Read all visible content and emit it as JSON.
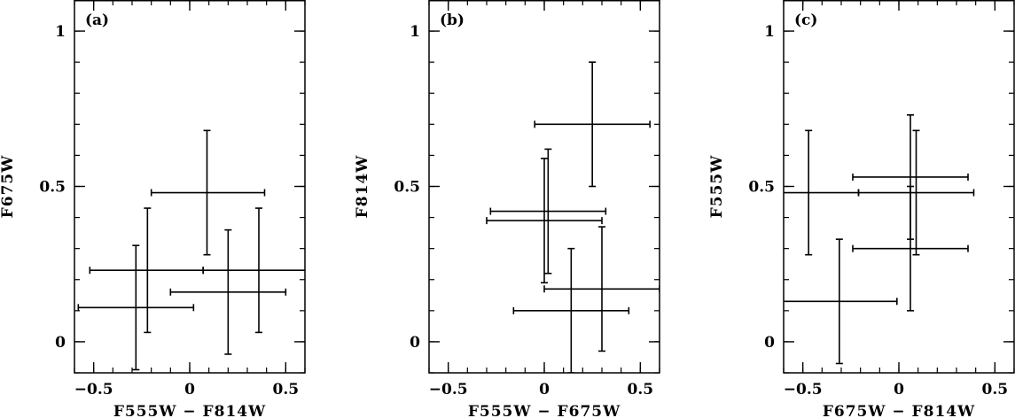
{
  "chart_data": [
    {
      "type": "scatter",
      "panel_label": "(a)",
      "xlabel": "F555W − F814W",
      "ylabel": "F675W",
      "xlim": [
        -0.6,
        0.6
      ],
      "ylim": [
        -0.1,
        1.1
      ],
      "xticks": [
        -0.5,
        0,
        0.5
      ],
      "xtick_labels": [
        "−0.5",
        "0",
        "0.5"
      ],
      "yticks": [
        0,
        0.5,
        1
      ],
      "ytick_labels": [
        "0",
        "0.5",
        "1"
      ],
      "points": [
        {
          "x": 0.09,
          "y": 0.48,
          "xerr": [
            0.29,
            0.3
          ],
          "yerr": [
            0.2,
            0.2
          ]
        },
        {
          "x": -0.22,
          "y": 0.23,
          "xerr": [
            0.3,
            0.29
          ],
          "yerr": [
            0.2,
            0.2
          ]
        },
        {
          "x": -0.28,
          "y": 0.11,
          "xerr": [
            0.3,
            0.3
          ],
          "yerr": [
            0.2,
            0.2
          ]
        },
        {
          "x": 0.36,
          "y": 0.23,
          "xerr": [
            0.29,
            0.29
          ],
          "yerr": [
            0.2,
            0.2
          ]
        },
        {
          "x": 0.2,
          "y": 0.16,
          "xerr": [
            0.3,
            0.3
          ],
          "yerr": [
            0.2,
            0.2
          ]
        }
      ]
    },
    {
      "type": "scatter",
      "panel_label": "(b)",
      "xlabel": "F555W − F675W",
      "ylabel": "F814W",
      "xlim": [
        -0.6,
        0.6
      ],
      "ylim": [
        -0.1,
        1.1
      ],
      "xticks": [
        -0.5,
        0,
        0.5
      ],
      "xtick_labels": [
        "−0.5",
        "0",
        "0.5"
      ],
      "yticks": [
        0,
        0.5,
        1
      ],
      "ytick_labels": [
        "0",
        "0.5",
        "1"
      ],
      "points": [
        {
          "x": 0.25,
          "y": 0.7,
          "xerr": [
            0.3,
            0.3
          ],
          "yerr": [
            0.2,
            0.2
          ]
        },
        {
          "x": 0.02,
          "y": 0.42,
          "xerr": [
            0.3,
            0.3
          ],
          "yerr": [
            0.2,
            0.2
          ]
        },
        {
          "x": 0.0,
          "y": 0.39,
          "xerr": [
            0.3,
            0.3
          ],
          "yerr": [
            0.2,
            0.2
          ]
        },
        {
          "x": 0.3,
          "y": 0.17,
          "xerr": [
            0.3,
            0.3
          ],
          "yerr": [
            0.2,
            0.2
          ]
        },
        {
          "x": 0.14,
          "y": 0.1,
          "xerr": [
            0.3,
            0.3
          ],
          "yerr": [
            0.2,
            0.2
          ]
        }
      ]
    },
    {
      "type": "scatter",
      "panel_label": "(c)",
      "xlabel": "F675W − F814W",
      "ylabel": "F555W",
      "xlim": [
        -0.6,
        0.6
      ],
      "ylim": [
        -0.1,
        1.1
      ],
      "xticks": [
        -0.5,
        0,
        0.5
      ],
      "xtick_labels": [
        "−0.5",
        "0",
        "0.5"
      ],
      "yticks": [
        0,
        0.5,
        1
      ],
      "ytick_labels": [
        "0",
        "0.5",
        "1"
      ],
      "points": [
        {
          "x": 0.06,
          "y": 0.53,
          "xerr": [
            0.3,
            0.3
          ],
          "yerr": [
            0.2,
            0.2
          ]
        },
        {
          "x": -0.47,
          "y": 0.48,
          "xerr": [
            0.3,
            0.26
          ],
          "yerr": [
            0.2,
            0.2
          ]
        },
        {
          "x": 0.09,
          "y": 0.48,
          "xerr": [
            0.3,
            0.3
          ],
          "yerr": [
            0.2,
            0.2
          ]
        },
        {
          "x": 0.06,
          "y": 0.3,
          "xerr": [
            0.3,
            0.3
          ],
          "yerr": [
            0.2,
            0.2
          ]
        },
        {
          "x": -0.31,
          "y": 0.13,
          "xerr": [
            0.3,
            0.3
          ],
          "yerr": [
            0.2,
            0.2
          ]
        }
      ]
    }
  ]
}
